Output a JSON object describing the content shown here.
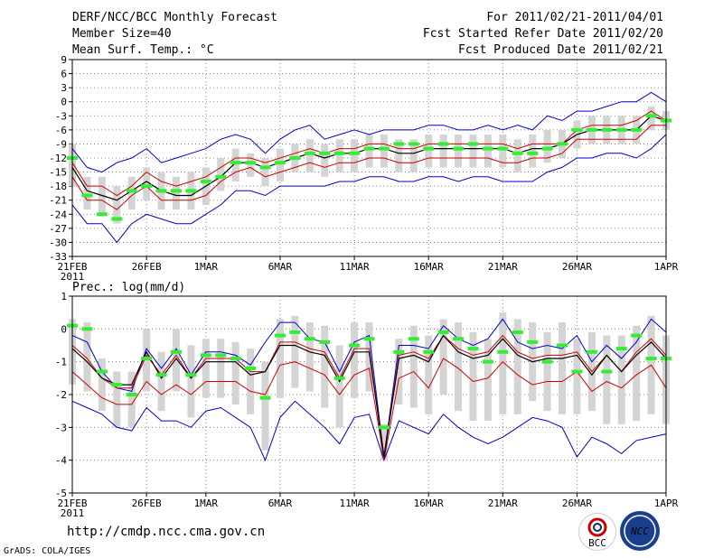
{
  "header": {
    "title": "DERF/NCC/BCC Monthly Forecast",
    "member": "Member Size=40",
    "variable": "Mean Surf. Temp.: °C",
    "period": "For 2011/02/21-2011/04/01",
    "refer": "Fcst Started Refer Date 2011/02/20",
    "produced": "Fcst Produced Date 2011/02/21"
  },
  "footer": {
    "url": "http://cmdp.ncc.cma.gov.cn",
    "grads": "GrADS: COLA/IGES",
    "logo_bcc": "BCC",
    "logo_ncc": "NCC"
  },
  "colors": {
    "max_min": "#0000cc",
    "quantile": "#cc0000",
    "mean": "#000000",
    "median": "#33ee33",
    "box": "#d4d4d4"
  },
  "chart_data": [
    {
      "type": "line",
      "title": "Mean Surf. Temp.: °C",
      "ylabel": "°C",
      "ylim": [
        -33,
        9
      ],
      "yticks": [
        9,
        6,
        3,
        0,
        -3,
        -6,
        -9,
        -12,
        -15,
        -18,
        -21,
        -24,
        -27,
        -30,
        -33
      ],
      "ytick_labels": [
        "9",
        "6",
        "3",
        "0",
        "-3",
        "-6",
        "-9",
        "-12",
        "-15",
        "-18",
        "-21",
        "-24",
        "-27",
        "-30",
        "-33"
      ],
      "xlim": [
        0,
        40
      ],
      "xticks": [
        0,
        5,
        9,
        14,
        19,
        24,
        29,
        34,
        40
      ],
      "xtick_labels": [
        "21FEB",
        "26FEB",
        "1MAR",
        "6MAR",
        "11MAR",
        "16MAR",
        "21MAR",
        "26MAR",
        "1APR"
      ],
      "xsub_label": "2011",
      "series": [
        {
          "name": "max",
          "values": [
            -10,
            -14,
            -15,
            -13,
            -12,
            -10,
            -13,
            -12,
            -11,
            -10,
            -8,
            -7,
            -8,
            -11,
            -8,
            -6,
            -5,
            -8,
            -7,
            -6,
            -7,
            -6,
            -6,
            -6,
            -5,
            -5,
            -6,
            -6,
            -5,
            -6,
            -5,
            -6,
            -3,
            -4,
            -2,
            -2,
            -1,
            0,
            0,
            2,
            0
          ]
        },
        {
          "name": "q75",
          "values": [
            -13,
            -18,
            -18,
            -20,
            -18,
            -15,
            -17,
            -18,
            -17,
            -16,
            -14,
            -12,
            -12,
            -13,
            -12,
            -11,
            -10,
            -11,
            -10,
            -10,
            -9,
            -9,
            -10,
            -10,
            -9,
            -9,
            -9,
            -9,
            -9,
            -9,
            -10,
            -9,
            -9,
            -9,
            -6,
            -5,
            -5,
            -5,
            -4,
            -2,
            -4
          ]
        },
        {
          "name": "mean",
          "values": [
            -14,
            -19,
            -20,
            -21,
            -19,
            -17,
            -19,
            -20,
            -20,
            -18,
            -16,
            -13,
            -13,
            -14,
            -13,
            -12,
            -11,
            -12,
            -11,
            -11,
            -10,
            -10,
            -11,
            -11,
            -10,
            -10,
            -10,
            -10,
            -10,
            -10,
            -11,
            -10,
            -10,
            -9,
            -7,
            -6,
            -6,
            -6,
            -6,
            -3,
            -4
          ]
        },
        {
          "name": "q25",
          "values": [
            -16,
            -21,
            -21,
            -23,
            -20,
            -18,
            -21,
            -21,
            -21,
            -20,
            -17,
            -15,
            -14,
            -16,
            -15,
            -14,
            -13,
            -14,
            -13,
            -13,
            -12,
            -12,
            -13,
            -13,
            -12,
            -12,
            -12,
            -12,
            -12,
            -13,
            -13,
            -12,
            -12,
            -11,
            -8,
            -8,
            -8,
            -8,
            -8,
            -5,
            -5
          ]
        },
        {
          "name": "min",
          "values": [
            -22,
            -26,
            -26,
            -30,
            -26,
            -24,
            -25,
            -26,
            -26,
            -24,
            -22,
            -19,
            -19,
            -20,
            -18,
            -18,
            -18,
            -18,
            -17,
            -17,
            -16,
            -16,
            -17,
            -17,
            -16,
            -16,
            -17,
            -16,
            -16,
            -17,
            -17,
            -17,
            -15,
            -14,
            -12,
            -12,
            -11,
            -11,
            -12,
            -10,
            -7
          ]
        },
        {
          "name": "median",
          "values": [
            -12,
            -20,
            -24,
            -25,
            -19,
            -18,
            -19,
            -19,
            -19,
            -17,
            -16,
            -13,
            -13,
            -14,
            -13,
            -12,
            -11,
            -11,
            -11,
            -11,
            -10,
            -10,
            -9,
            -9,
            -10,
            -9,
            -10,
            -9,
            -10,
            -10,
            -11,
            -11,
            -10,
            -9,
            -6,
            -6,
            -6,
            -6,
            -6,
            -3,
            -4
          ]
        },
        {
          "name": "box_high",
          "values": [
            -9,
            -16,
            -16,
            -18,
            -16,
            -14,
            -15,
            -16,
            -15,
            -14,
            -12,
            -10,
            -11,
            -12,
            -10,
            -9,
            -8,
            -9,
            -8,
            -8,
            -7,
            -7,
            -8,
            -8,
            -7,
            -7,
            -7,
            -7,
            -7,
            -7,
            -8,
            -7,
            -6,
            -6,
            -4,
            -3,
            -3,
            -3,
            -3,
            -1,
            -2
          ]
        },
        {
          "name": "box_low",
          "values": [
            -18,
            -23,
            -24,
            -26,
            -23,
            -21,
            -23,
            -23,
            -23,
            -22,
            -19,
            -17,
            -16,
            -18,
            -17,
            -15,
            -15,
            -16,
            -15,
            -15,
            -14,
            -14,
            -15,
            -15,
            -14,
            -14,
            -14,
            -14,
            -14,
            -14,
            -15,
            -14,
            -13,
            -12,
            -10,
            -9,
            -9,
            -9,
            -9,
            -6,
            -6
          ]
        }
      ]
    },
    {
      "type": "line",
      "title": "Prec.: log(mm/d)",
      "ylabel": "log(mm/d)",
      "ylim": [
        -5,
        1
      ],
      "yticks": [
        1,
        0,
        -1,
        -2,
        -3,
        -4,
        -5
      ],
      "ytick_labels": [
        "1",
        "0",
        "-1",
        "-2",
        "-3",
        "-4",
        "-5"
      ],
      "xlim": [
        0,
        40
      ],
      "xticks": [
        0,
        5,
        9,
        14,
        19,
        24,
        29,
        34,
        40
      ],
      "xtick_labels": [
        "21FEB",
        "26FEB",
        "1MAR",
        "6MAR",
        "11MAR",
        "16MAR",
        "21MAR",
        "26MAR",
        "1APR"
      ],
      "xsub_label": "2011",
      "series": [
        {
          "name": "max",
          "values": [
            -0.2,
            -0.4,
            -1.3,
            -1.8,
            -1.9,
            -0.6,
            -1.2,
            -0.6,
            -1.4,
            -0.7,
            -0.7,
            -0.8,
            -1.1,
            -0.4,
            0.2,
            0.2,
            -0.3,
            -0.4,
            -1.3,
            -0.4,
            -0.2,
            -3.9,
            -0.5,
            -0.5,
            -0.6,
            0.1,
            -0.3,
            -0.5,
            -0.3,
            0.3,
            -0.4,
            -0.6,
            -0.5,
            -0.6,
            -0.2,
            -1.0,
            -0.5,
            -0.9,
            -0.4,
            0.3,
            -0.1
          ]
        },
        {
          "name": "q75",
          "values": [
            -0.5,
            -0.9,
            -1.5,
            -1.8,
            -1.8,
            -0.8,
            -1.4,
            -0.8,
            -1.5,
            -0.9,
            -0.9,
            -0.9,
            -1.3,
            -1.3,
            -0.4,
            -0.4,
            -0.6,
            -0.7,
            -1.5,
            -0.6,
            -0.6,
            -3.9,
            -0.8,
            -0.7,
            -0.9,
            -0.2,
            -0.6,
            -0.8,
            -0.7,
            -0.2,
            -0.7,
            -0.9,
            -0.8,
            -0.8,
            -0.7,
            -1.3,
            -0.8,
            -1.3,
            -0.7,
            -0.3,
            -0.8
          ]
        },
        {
          "name": "mean",
          "values": [
            -0.6,
            -1.0,
            -1.5,
            -1.7,
            -1.7,
            -0.7,
            -1.5,
            -0.9,
            -1.5,
            -1.0,
            -1.0,
            -1.0,
            -1.4,
            -1.3,
            -0.5,
            -0.5,
            -0.7,
            -0.8,
            -1.6,
            -0.7,
            -0.7,
            -3.9,
            -0.9,
            -0.8,
            -1.0,
            -0.2,
            -0.7,
            -0.9,
            -0.8,
            -0.3,
            -0.8,
            -1.0,
            -0.9,
            -0.9,
            -0.8,
            -1.4,
            -0.8,
            -1.3,
            -0.8,
            -0.4,
            -0.9
          ]
        },
        {
          "name": "q25",
          "values": [
            -1.3,
            -1.7,
            -2.1,
            -2.3,
            -2.3,
            -1.6,
            -2.0,
            -1.7,
            -2.0,
            -1.6,
            -1.6,
            -1.6,
            -1.9,
            -2.0,
            -1.1,
            -1.0,
            -1.2,
            -1.4,
            -2.0,
            -1.4,
            -1.2,
            -4.0,
            -1.5,
            -1.3,
            -1.8,
            -0.9,
            -1.2,
            -1.6,
            -1.5,
            -1.0,
            -1.4,
            -1.7,
            -1.6,
            -1.6,
            -1.3,
            -1.9,
            -1.6,
            -1.8,
            -1.4,
            -1.1,
            -1.8
          ]
        },
        {
          "name": "min",
          "values": [
            -2.2,
            -2.4,
            -2.6,
            -3.0,
            -3.1,
            -2.4,
            -2.8,
            -2.8,
            -3.0,
            -2.5,
            -2.4,
            -2.7,
            -3.0,
            -4.0,
            -2.7,
            -2.2,
            -2.6,
            -3.0,
            -3.5,
            -2.7,
            -2.6,
            -4.0,
            -2.8,
            -3.0,
            -3.2,
            -2.6,
            -3.0,
            -3.3,
            -3.5,
            -3.3,
            -3.0,
            -2.7,
            -2.8,
            -3.0,
            -3.9,
            -3.3,
            -3.5,
            -3.8,
            -3.4,
            -3.3,
            -3.2
          ]
        },
        {
          "name": "median",
          "values": [
            0.1,
            0.0,
            -1.3,
            -1.7,
            -2.0,
            -0.9,
            -1.4,
            -0.7,
            -1.4,
            -0.8,
            -0.8,
            -0.9,
            -1.2,
            -2.1,
            -0.2,
            -0.1,
            -0.3,
            -0.4,
            -1.5,
            -0.5,
            -0.3,
            -3.0,
            -0.7,
            -0.3,
            -0.7,
            -0.1,
            -0.3,
            -0.6,
            -1.0,
            -0.7,
            -0.1,
            -0.4,
            -1.0,
            -0.5,
            -1.3,
            -0.7,
            -1.3,
            -0.6,
            -0.2,
            -0.9,
            -0.9
          ]
        },
        {
          "name": "box_high",
          "values": [
            0.3,
            0.2,
            -0.9,
            -1.3,
            -1.3,
            0.0,
            -0.7,
            0.0,
            -0.5,
            -0.3,
            -0.3,
            -0.4,
            -0.6,
            -1.0,
            0.3,
            0.4,
            0.2,
            0.1,
            -0.5,
            0.2,
            0.2,
            -2.9,
            -0.3,
            0.1,
            -0.2,
            0.3,
            0.2,
            -0.1,
            -0.3,
            0.5,
            0.3,
            0.2,
            -0.1,
            0.2,
            -0.3,
            -0.1,
            -0.2,
            -0.2,
            0.1,
            0.4,
            -0.2
          ]
        },
        {
          "name": "box_low",
          "values": [
            -1.7,
            -1.9,
            -2.5,
            -3.0,
            -3.0,
            -1.9,
            -2.5,
            -1.9,
            -2.7,
            -2.1,
            -2.1,
            -2.3,
            -2.6,
            -3.7,
            -2.1,
            -1.8,
            -1.9,
            -2.4,
            -3.0,
            -2.1,
            -1.9,
            -4.0,
            -2.3,
            -2.4,
            -2.6,
            -2.0,
            -2.5,
            -2.8,
            -2.8,
            -2.6,
            -2.6,
            -2.2,
            -2.5,
            -2.6,
            -2.6,
            -2.5,
            -2.9,
            -2.9,
            -2.8,
            -2.6,
            -2.9
          ]
        }
      ]
    }
  ]
}
